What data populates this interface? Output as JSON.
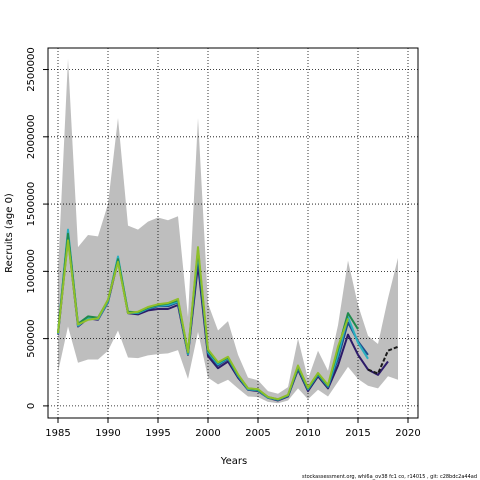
{
  "chart_data": {
    "type": "line",
    "title": "",
    "xlabel": "Years",
    "ylabel": "Recruits (age 0)",
    "footnote": "stockassessment.org, whi6a_ov38 fc1 co, r14015 , git: c28bdc2a44ad",
    "xlim": [
      1984,
      2021
    ],
    "ylim": [
      -90000,
      2660000
    ],
    "xticks": [
      1985,
      1990,
      1995,
      2000,
      2005,
      2010,
      2015,
      2020
    ],
    "yticks": [
      0,
      500000,
      1000000,
      1500000,
      2000000,
      2500000
    ],
    "grid": true,
    "legend": "none",
    "band": {
      "x": [
        1985,
        1986,
        1987,
        1988,
        1989,
        1990,
        1991,
        1992,
        1993,
        1994,
        1995,
        1996,
        1997,
        1998,
        1999,
        2000,
        2001,
        2002,
        2003,
        2004,
        2005,
        2006,
        2007,
        2008,
        2009,
        2010,
        2011,
        2012,
        2013,
        2014,
        2015,
        2016,
        2017,
        2018,
        2019
      ],
      "lower": [
        250000,
        590000,
        320000,
        345000,
        345000,
        410000,
        560000,
        360000,
        355000,
        375000,
        385000,
        390000,
        415000,
        200000,
        550000,
        210000,
        160000,
        195000,
        130000,
        70000,
        65000,
        30000,
        20000,
        40000,
        130000,
        50000,
        120000,
        70000,
        180000,
        290000,
        200000,
        150000,
        130000,
        220000,
        195000
      ],
      "color": "#bebebe",
      "upper": [
        1000000,
        2580000,
        1180000,
        1270000,
        1260000,
        1500000,
        2140000,
        1340000,
        1310000,
        1370000,
        1400000,
        1380000,
        1410000,
        660000,
        2140000,
        760000,
        560000,
        630000,
        380000,
        210000,
        190000,
        110000,
        90000,
        140000,
        500000,
        200000,
        410000,
        260000,
        600000,
        1080000,
        750000,
        520000,
        460000,
        800000,
        1100000
      ]
    },
    "series": [
      {
        "color": "#2d1b69",
        "x": [
          1985,
          1986,
          1987,
          1988,
          1989,
          1990,
          1991,
          1992,
          1993,
          1994,
          1995,
          1996,
          1997,
          1998,
          1999,
          2000,
          2001,
          2002,
          2003,
          2004,
          2005,
          2006,
          2007,
          2008,
          2009,
          2010,
          2011,
          2012,
          2013,
          2014,
          2015,
          2016,
          2017,
          2018
        ],
        "values": [
          530000,
          1250000,
          590000,
          650000,
          640000,
          770000,
          1080000,
          690000,
          680000,
          710000,
          720000,
          720000,
          750000,
          380000,
          1050000,
          370000,
          280000,
          330000,
          210000,
          120000,
          110000,
          60000,
          40000,
          70000,
          270000,
          110000,
          220000,
          130000,
          300000,
          530000,
          380000,
          270000,
          230000,
          330000
        ]
      },
      {
        "color": "#1f4e8c",
        "x": [
          1985,
          1986,
          1987,
          1988,
          1989,
          1990,
          1991,
          1992,
          1993,
          1994,
          1995,
          1996,
          1997,
          1998,
          1999,
          2000,
          2001,
          2002,
          2003,
          2004,
          2005,
          2006,
          2007,
          2008,
          2009,
          2010,
          2011,
          2012,
          2013,
          2014,
          2015,
          2016
        ],
        "values": [
          540000,
          1290000,
          600000,
          660000,
          650000,
          780000,
          1100000,
          690000,
          690000,
          720000,
          740000,
          740000,
          770000,
          390000,
          1120000,
          390000,
          300000,
          350000,
          220000,
          120000,
          120000,
          60000,
          45000,
          75000,
          280000,
          120000,
          230000,
          140000,
          350000,
          620000,
          480000,
          380000
        ]
      },
      {
        "color": "#2ab0c0",
        "x": [
          1985,
          1986,
          1987,
          1988,
          1989,
          1990,
          1991,
          1992,
          1993,
          1994,
          1995,
          1996,
          1997,
          1998,
          1999,
          2000,
          2001,
          2002,
          2003,
          2004,
          2005,
          2006,
          2007,
          2008,
          2009,
          2010,
          2011,
          2012,
          2013,
          2014,
          2015,
          2016
        ],
        "values": [
          535000,
          1310000,
          595000,
          655000,
          645000,
          775000,
          1110000,
          695000,
          690000,
          725000,
          745000,
          750000,
          775000,
          385000,
          1140000,
          400000,
          310000,
          355000,
          225000,
          125000,
          115000,
          62000,
          45000,
          78000,
          285000,
          125000,
          235000,
          145000,
          380000,
          660000,
          470000,
          350000
        ]
      },
      {
        "color": "#1f8a4c",
        "x": [
          1985,
          1986,
          1987,
          1988,
          1989,
          1990,
          1991,
          1992,
          1993,
          1994,
          1995,
          1996,
          1997,
          1998,
          1999,
          2000,
          2001,
          2002,
          2003,
          2004,
          2005,
          2006,
          2007,
          2008,
          2009,
          2010,
          2011,
          2012,
          2013,
          2014,
          2015
        ],
        "values": [
          545000,
          1280000,
          610000,
          665000,
          655000,
          785000,
          1090000,
          700000,
          695000,
          730000,
          750000,
          760000,
          785000,
          395000,
          1160000,
          410000,
          320000,
          360000,
          230000,
          130000,
          120000,
          65000,
          48000,
          80000,
          290000,
          130000,
          240000,
          150000,
          420000,
          690000,
          570000
        ]
      },
      {
        "color": "#8fbf2a",
        "x": [
          1985,
          1986,
          1987,
          1988,
          1989,
          1990,
          1991,
          1992,
          1993,
          1994,
          1995,
          1996,
          1997,
          1998,
          1999,
          2000,
          2001,
          2002,
          2003,
          2004,
          2005,
          2006,
          2007,
          2008,
          2009,
          2010,
          2011,
          2012,
          2013,
          2014
        ],
        "values": [
          540000,
          1230000,
          605000,
          640000,
          650000,
          790000,
          1070000,
          690000,
          700000,
          735000,
          755000,
          765000,
          795000,
          400000,
          1180000,
          420000,
          325000,
          365000,
          235000,
          130000,
          125000,
          66000,
          50000,
          82000,
          300000,
          135000,
          245000,
          155000,
          440000,
          650000
        ]
      },
      {
        "color": "#1a1a1a",
        "dashed": true,
        "x": [
          2016,
          2017,
          2018,
          2019
        ],
        "values": [
          270000,
          240000,
          410000,
          440000
        ]
      }
    ]
  }
}
